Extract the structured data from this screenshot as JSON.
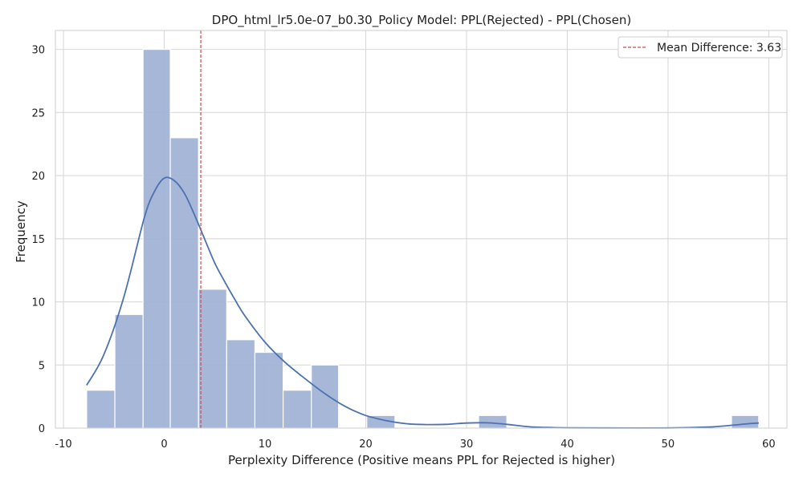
{
  "chart_data": {
    "type": "histogram",
    "title": "DPO_html_lr5.0e-07_b0.30_Policy Model: PPL(Rejected) - PPL(Chosen)",
    "xlabel": "Perplexity Difference (Positive means PPL for Rejected is higher)",
    "ylabel": "Frequency",
    "xlim": [
      -10.8,
      61.8
    ],
    "ylim": [
      0,
      31.5
    ],
    "xticks": [
      -10,
      0,
      10,
      20,
      30,
      40,
      50,
      60
    ],
    "yticks": [
      0,
      5,
      10,
      15,
      20,
      25,
      30
    ],
    "grid": true,
    "legend_position": "top-right",
    "bar_color": "#a1b3d6",
    "kde_color": "#4c72b0",
    "mean_line_color": "#d04a4a",
    "bins": [
      {
        "x0": -7.7,
        "x1": -4.9,
        "count": 3
      },
      {
        "x0": -4.9,
        "x1": -2.1,
        "count": 9
      },
      {
        "x0": -2.1,
        "x1": 0.6,
        "count": 30
      },
      {
        "x0": 0.6,
        "x1": 3.4,
        "count": 23
      },
      {
        "x0": 3.4,
        "x1": 6.2,
        "count": 11
      },
      {
        "x0": 6.2,
        "x1": 9.0,
        "count": 7
      },
      {
        "x0": 9.0,
        "x1": 11.8,
        "count": 6
      },
      {
        "x0": 11.8,
        "x1": 14.6,
        "count": 3
      },
      {
        "x0": 14.6,
        "x1": 17.3,
        "count": 5
      },
      {
        "x0": 17.3,
        "x1": 20.1,
        "count": 0
      },
      {
        "x0": 20.1,
        "x1": 22.9,
        "count": 1
      },
      {
        "x0": 22.9,
        "x1": 25.7,
        "count": 0
      },
      {
        "x0": 25.7,
        "x1": 28.5,
        "count": 0
      },
      {
        "x0": 28.5,
        "x1": 31.2,
        "count": 0
      },
      {
        "x0": 31.2,
        "x1": 34.0,
        "count": 1
      },
      {
        "x0": 34.0,
        "x1": 36.8,
        "count": 0
      },
      {
        "x0": 36.8,
        "x1": 39.6,
        "count": 0
      },
      {
        "x0": 39.6,
        "x1": 42.4,
        "count": 0
      },
      {
        "x0": 42.4,
        "x1": 45.1,
        "count": 0
      },
      {
        "x0": 45.1,
        "x1": 47.9,
        "count": 0
      },
      {
        "x0": 47.9,
        "x1": 50.7,
        "count": 0
      },
      {
        "x0": 50.7,
        "x1": 53.5,
        "count": 0
      },
      {
        "x0": 53.5,
        "x1": 56.3,
        "count": 0
      },
      {
        "x0": 56.3,
        "x1": 59.0,
        "count": 1
      }
    ],
    "kde": {
      "x": [
        -7.7,
        -6,
        -4,
        -2,
        -1,
        0,
        1,
        2,
        3,
        4,
        5,
        6,
        7,
        8,
        10,
        12,
        14,
        16,
        18,
        20,
        22,
        24,
        26,
        28,
        30,
        32,
        34,
        36,
        38,
        40,
        44,
        50,
        54,
        56,
        58,
        59
      ],
      "y": [
        3.4,
        5.8,
        10.4,
        16.6,
        18.7,
        19.8,
        19.6,
        18.6,
        16.9,
        15.0,
        13.1,
        11.6,
        10.2,
        8.9,
        6.8,
        5.2,
        3.9,
        2.7,
        1.7,
        1.0,
        0.6,
        0.35,
        0.28,
        0.3,
        0.4,
        0.42,
        0.3,
        0.12,
        0.05,
        0.02,
        0.01,
        0.01,
        0.08,
        0.2,
        0.35,
        0.4
      ]
    },
    "mean": {
      "value": 3.63,
      "label": "Mean Difference: 3.63"
    }
  }
}
